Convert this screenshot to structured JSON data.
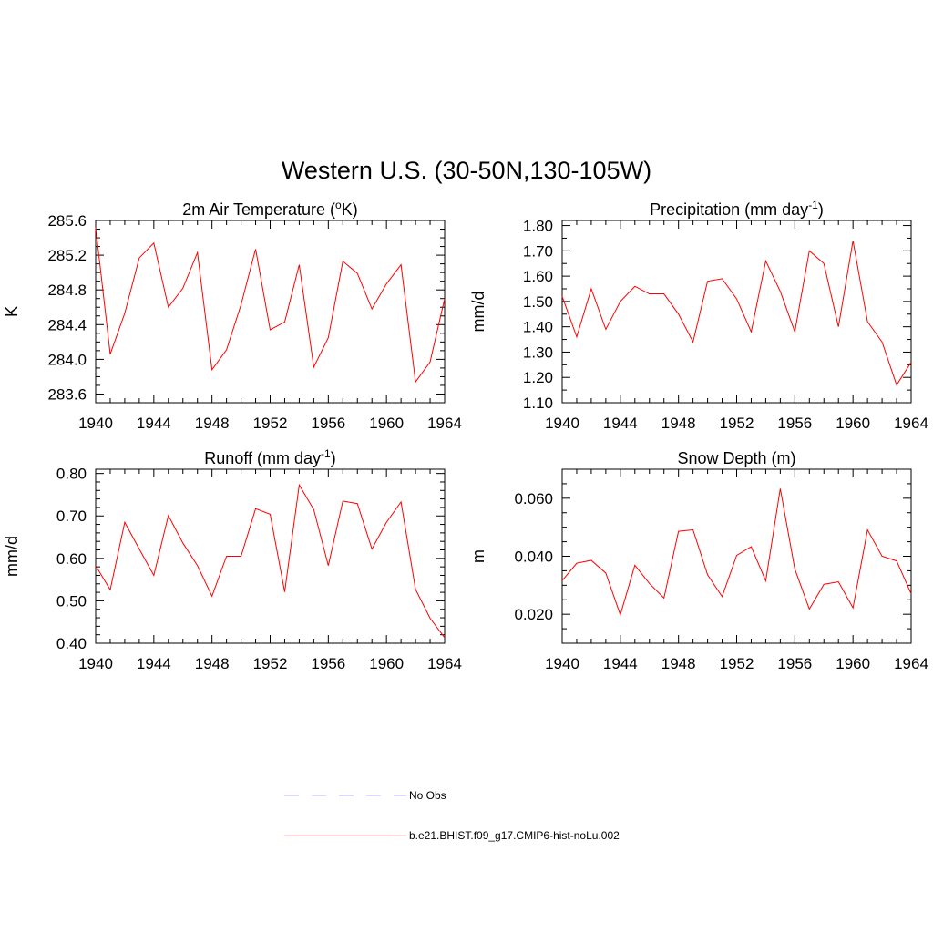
{
  "figure": {
    "title": "Western U.S. (30-50N,130-105W)"
  },
  "colors": {
    "model_line": "#ff0000",
    "obs_line": "#b3b3ff",
    "legend_model_line": "#ffb3b3",
    "axis": "#000000"
  },
  "legend": {
    "items": [
      {
        "label": "No Obs",
        "style": "dashed",
        "color": "#b3b3ff"
      },
      {
        "label": "b.e21.BHIST.f09_g17.CMIP6-hist-noLu.002",
        "style": "solid",
        "color": "#ffb3b3"
      }
    ]
  },
  "chart_data": [
    {
      "type": "line",
      "title_main": "2m Air Temperature (",
      "title_sup": "o",
      "title_after": "K)",
      "ylabel": "K",
      "xlabel": "",
      "xlim": [
        1940,
        1964
      ],
      "ylim": [
        283.5,
        285.6
      ],
      "xticks": [
        1940,
        1944,
        1948,
        1952,
        1956,
        1960,
        1964
      ],
      "yticks": [
        283.6,
        284.0,
        284.4,
        284.8,
        285.2,
        285.6
      ],
      "ytick_labels": [
        "283.6",
        "284.0",
        "284.4",
        "284.8",
        "285.2",
        "285.6"
      ],
      "yminor_step": 0.1,
      "x": [
        1940,
        1941,
        1942,
        1943,
        1944,
        1945,
        1946,
        1947,
        1948,
        1949,
        1950,
        1951,
        1952,
        1953,
        1954,
        1955,
        1956,
        1957,
        1958,
        1959,
        1960,
        1961,
        1962,
        1963,
        1964
      ],
      "series": [
        {
          "values": [
            285.52,
            284.06,
            284.53,
            285.17,
            285.34,
            284.6,
            284.82,
            285.23,
            283.88,
            284.11,
            284.63,
            285.27,
            284.34,
            284.43,
            285.09,
            283.91,
            284.25,
            285.13,
            284.99,
            284.58,
            284.87,
            285.09,
            283.74,
            283.97,
            284.7
          ]
        }
      ]
    },
    {
      "type": "line",
      "title_main": "Precipitation (mm day",
      "title_sup": "-1",
      "title_after": ")",
      "ylabel": "mm/d",
      "xlabel": "",
      "xlim": [
        1940,
        1964
      ],
      "ylim": [
        1.1,
        1.82
      ],
      "xticks": [
        1940,
        1944,
        1948,
        1952,
        1956,
        1960,
        1964
      ],
      "yticks": [
        1.1,
        1.2,
        1.3,
        1.4,
        1.5,
        1.6,
        1.7,
        1.8
      ],
      "ytick_labels": [
        "1.10",
        "1.20",
        "1.30",
        "1.40",
        "1.50",
        "1.60",
        "1.70",
        "1.80"
      ],
      "yminor_step": 0.05,
      "x": [
        1940,
        1941,
        1942,
        1943,
        1944,
        1945,
        1946,
        1947,
        1948,
        1949,
        1950,
        1951,
        1952,
        1953,
        1954,
        1955,
        1956,
        1957,
        1958,
        1959,
        1960,
        1961,
        1962,
        1963,
        1964
      ],
      "series": [
        {
          "values": [
            1.52,
            1.36,
            1.55,
            1.39,
            1.5,
            1.56,
            1.53,
            1.53,
            1.45,
            1.34,
            1.58,
            1.59,
            1.51,
            1.38,
            1.66,
            1.54,
            1.38,
            1.7,
            1.65,
            1.4,
            1.74,
            1.42,
            1.34,
            1.17,
            1.26
          ]
        }
      ]
    },
    {
      "type": "line",
      "title_main": "Runoff (mm day",
      "title_sup": "-1",
      "title_after": ")",
      "ylabel": "mm/d",
      "xlabel": "",
      "xlim": [
        1940,
        1964
      ],
      "ylim": [
        0.4,
        0.81
      ],
      "xticks": [
        1940,
        1944,
        1948,
        1952,
        1956,
        1960,
        1964
      ],
      "yticks": [
        0.4,
        0.5,
        0.6,
        0.7,
        0.8
      ],
      "ytick_labels": [
        "0.40",
        "0.50",
        "0.60",
        "0.70",
        "0.80"
      ],
      "yminor_step": 0.02,
      "x": [
        1940,
        1941,
        1942,
        1943,
        1944,
        1945,
        1946,
        1947,
        1948,
        1949,
        1950,
        1951,
        1952,
        1953,
        1954,
        1955,
        1956,
        1957,
        1958,
        1959,
        1960,
        1961,
        1962,
        1963,
        1964
      ],
      "series": [
        {
          "values": [
            0.583,
            0.526,
            0.685,
            0.622,
            0.56,
            0.701,
            0.636,
            0.583,
            0.511,
            0.605,
            0.605,
            0.717,
            0.704,
            0.521,
            0.773,
            0.715,
            0.583,
            0.735,
            0.729,
            0.622,
            0.685,
            0.733,
            0.527,
            0.459,
            0.413
          ]
        }
      ]
    },
    {
      "type": "line",
      "title_main": "Snow Depth (m)",
      "title_sup": "",
      "title_after": "",
      "ylabel": "m",
      "xlabel": "",
      "xlim": [
        1940,
        1964
      ],
      "ylim": [
        0.01,
        0.07
      ],
      "xticks": [
        1940,
        1944,
        1948,
        1952,
        1956,
        1960,
        1964
      ],
      "yticks": [
        0.02,
        0.04,
        0.06
      ],
      "ytick_labels": [
        "0.020",
        "0.040",
        "0.060"
      ],
      "yminor_step": 0.005,
      "x": [
        1940,
        1941,
        1942,
        1943,
        1944,
        1945,
        1946,
        1947,
        1948,
        1949,
        1950,
        1951,
        1952,
        1953,
        1954,
        1955,
        1956,
        1957,
        1958,
        1959,
        1960,
        1961,
        1962,
        1963,
        1964
      ],
      "series": [
        {
          "values": [
            0.0316,
            0.0376,
            0.0386,
            0.0342,
            0.0198,
            0.0369,
            0.0306,
            0.0256,
            0.0486,
            0.0491,
            0.0336,
            0.0261,
            0.0403,
            0.0433,
            0.0315,
            0.0633,
            0.0356,
            0.0218,
            0.0303,
            0.0312,
            0.0222,
            0.0491,
            0.04,
            0.0384,
            0.0271
          ]
        }
      ]
    }
  ]
}
